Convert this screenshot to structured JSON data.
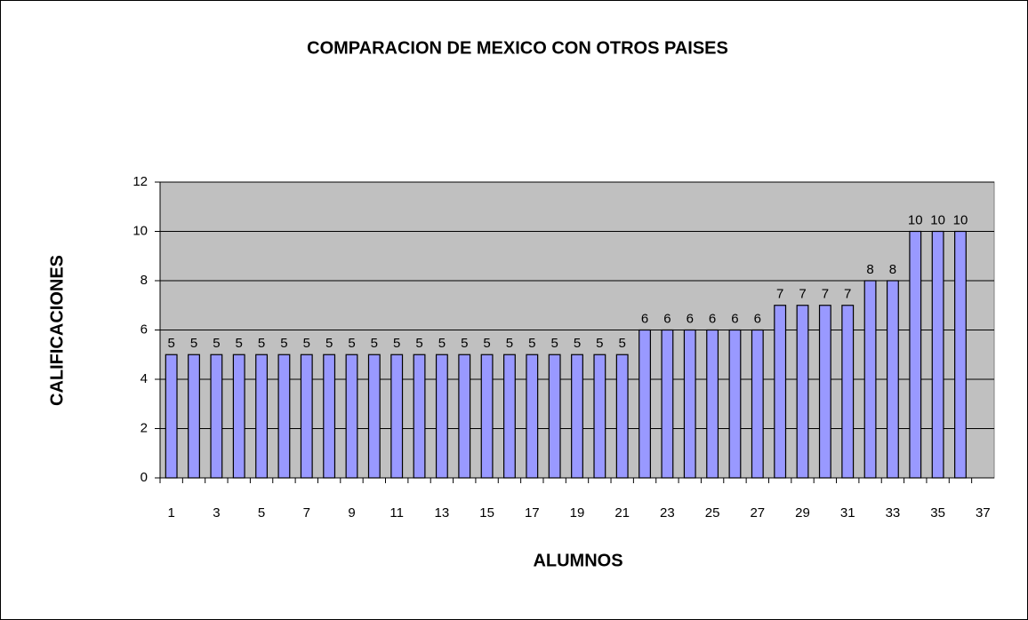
{
  "chart_data": {
    "type": "bar",
    "title": "COMPARACION DE MEXICO CON OTROS PAISES",
    "x_label": "ALUMNOS",
    "y_label": "CALIFICACIONES",
    "categories": [
      "1",
      null,
      "3",
      null,
      "5",
      null,
      "7",
      null,
      "9",
      null,
      "11",
      null,
      "13",
      null,
      "15",
      null,
      "17",
      null,
      "19",
      null,
      "21",
      null,
      "23",
      null,
      "25",
      null,
      "27",
      null,
      "29",
      null,
      "31",
      null,
      "33",
      null,
      "35",
      null,
      "37"
    ],
    "values": [
      5,
      5,
      5,
      5,
      5,
      5,
      5,
      5,
      5,
      5,
      5,
      5,
      5,
      5,
      5,
      5,
      5,
      5,
      5,
      5,
      5,
      6,
      6,
      6,
      6,
      6,
      6,
      7,
      7,
      7,
      7,
      8,
      8,
      10,
      10,
      10,
      null
    ],
    "color": "#9999ff",
    "ylim": [
      0,
      12
    ],
    "yticks": [
      0,
      2,
      4,
      6,
      8,
      10,
      12
    ],
    "grid": true
  }
}
